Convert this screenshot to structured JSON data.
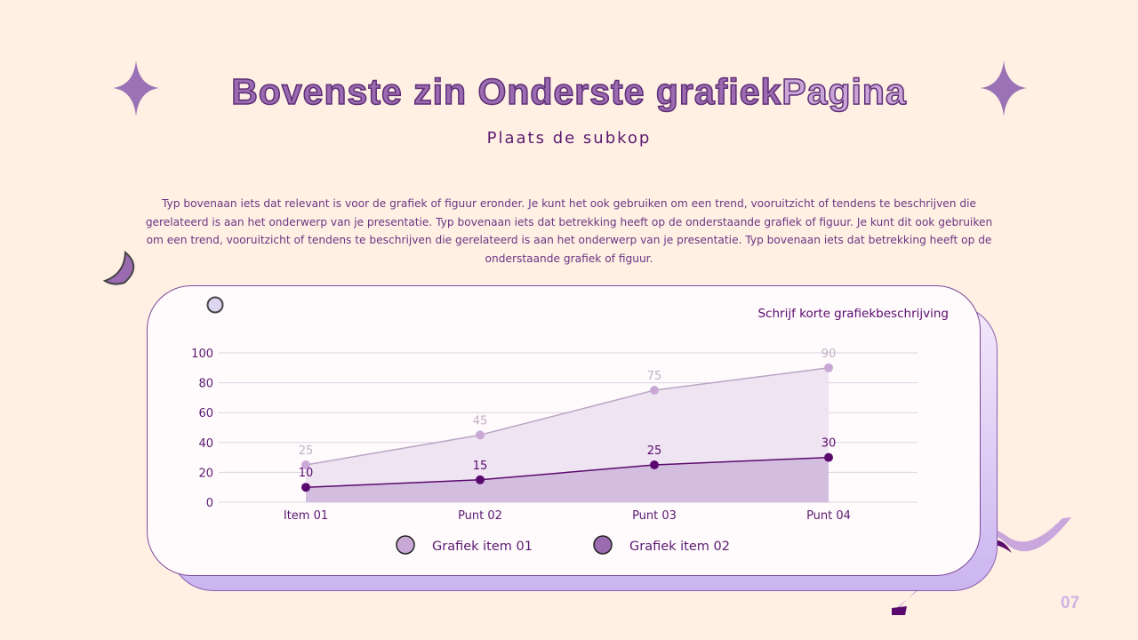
{
  "title_part1": "Bovenste zin Onderste grafiek",
  "title_part2": "Pagina",
  "subtitle": "Plaats de subkop",
  "paragraph": "Typ bovenaan iets dat relevant is voor de grafiek of figuur eronder. Je kunt het ook gebruiken om een trend, vooruitzicht of tendens te beschrijven die gerelateerd is aan het onderwerp van je presentatie. Typ bovenaan iets dat betrekking heeft op de onderstaande grafiek of figuur. Je kunt dit ook gebruiken om een trend, vooruitzicht of tendens te beschrijven die gerelateerd is aan het onderwerp van je presentatie. Typ bovenaan iets dat betrekking heeft op de onderstaande grafiek of figuur.",
  "page_number": "07",
  "colors": {
    "background": "#fff0e3",
    "series1": "#c9a8d6",
    "series2": "#5a0a6e",
    "accent": "#9a6bb0"
  },
  "chart_data": {
    "type": "area",
    "title": "Schrijf korte grafiekbeschrijving",
    "categories": [
      "Item 01",
      "Punt 02",
      "Punt 03",
      "Punt 04"
    ],
    "yticks": [
      "0",
      "20",
      "40",
      "60",
      "80",
      "100"
    ],
    "ylim": [
      0,
      100
    ],
    "grid": true,
    "legend": "bottom",
    "series": [
      {
        "name": "Grafiek item 01",
        "values": [
          25,
          45,
          75,
          90
        ]
      },
      {
        "name": "Grafiek item 02",
        "values": [
          10,
          15,
          25,
          30
        ]
      }
    ]
  }
}
